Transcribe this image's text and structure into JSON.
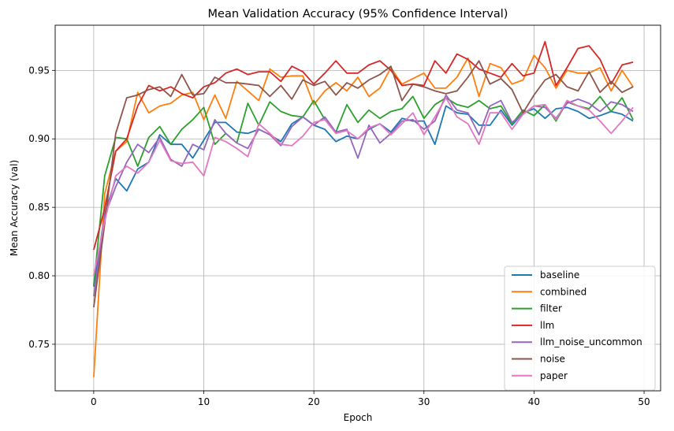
{
  "chart_data": {
    "type": "line",
    "title": "Mean Validation Accuracy (95% Confidence Interval)",
    "xlabel": "Epoch",
    "ylabel": "Mean Accuracy (val)",
    "xlim": [
      -3.5,
      51.5
    ],
    "ylim": [
      0.716,
      0.983
    ],
    "xticks": [
      0,
      10,
      20,
      30,
      40,
      50
    ],
    "yticks": [
      0.75,
      0.8,
      0.85,
      0.9,
      0.95
    ],
    "ytick_labels": [
      "0.75",
      "0.80",
      "0.85",
      "0.90",
      "0.95"
    ],
    "grid": true,
    "legend_position": "lower-right",
    "x": [
      0,
      1,
      2,
      3,
      4,
      5,
      6,
      7,
      8,
      9,
      10,
      11,
      12,
      13,
      14,
      15,
      16,
      17,
      18,
      19,
      20,
      21,
      22,
      23,
      24,
      25,
      26,
      27,
      28,
      29,
      30,
      31,
      32,
      33,
      34,
      35,
      36,
      37,
      38,
      39,
      40,
      41,
      42,
      43,
      44,
      45,
      46,
      47,
      48,
      49
    ],
    "series": [
      {
        "name": "baseline",
        "color": "#1f77b4",
        "values": [
          0.792,
          0.845,
          0.871,
          0.862,
          0.878,
          0.883,
          0.903,
          0.896,
          0.896,
          0.886,
          0.899,
          0.912,
          0.912,
          0.905,
          0.904,
          0.907,
          0.903,
          0.898,
          0.911,
          0.916,
          0.91,
          0.907,
          0.898,
          0.902,
          0.9,
          0.907,
          0.911,
          0.905,
          0.915,
          0.913,
          0.913,
          0.896,
          0.924,
          0.919,
          0.918,
          0.91,
          0.91,
          0.921,
          0.91,
          0.919,
          0.922,
          0.915,
          0.922,
          0.923,
          0.92,
          0.915,
          0.917,
          0.92,
          0.918,
          0.913
        ]
      },
      {
        "name": "combined",
        "color": "#ff7f0e",
        "values": [
          0.726,
          0.86,
          0.891,
          0.898,
          0.934,
          0.919,
          0.924,
          0.926,
          0.932,
          0.934,
          0.914,
          0.932,
          0.915,
          0.942,
          0.935,
          0.928,
          0.951,
          0.945,
          0.946,
          0.946,
          0.925,
          0.935,
          0.941,
          0.935,
          0.945,
          0.931,
          0.937,
          0.952,
          0.94,
          0.944,
          0.948,
          0.937,
          0.937,
          0.945,
          0.959,
          0.931,
          0.955,
          0.952,
          0.94,
          0.943,
          0.961,
          0.952,
          0.937,
          0.95,
          0.948,
          0.948,
          0.952,
          0.935,
          0.95,
          0.938
        ]
      },
      {
        "name": "filter",
        "color": "#2ca02c",
        "values": [
          0.793,
          0.873,
          0.901,
          0.9,
          0.88,
          0.901,
          0.909,
          0.896,
          0.907,
          0.914,
          0.923,
          0.896,
          0.904,
          0.897,
          0.926,
          0.91,
          0.927,
          0.92,
          0.917,
          0.916,
          0.928,
          0.914,
          0.905,
          0.925,
          0.912,
          0.921,
          0.915,
          0.92,
          0.922,
          0.931,
          0.915,
          0.925,
          0.93,
          0.925,
          0.923,
          0.928,
          0.922,
          0.924,
          0.911,
          0.921,
          0.917,
          0.925,
          0.913,
          0.927,
          0.924,
          0.922,
          0.931,
          0.92,
          0.93,
          0.914
        ]
      },
      {
        "name": "llm",
        "color": "#d62728",
        "values": [
          0.819,
          0.849,
          0.891,
          0.9,
          0.924,
          0.939,
          0.935,
          0.938,
          0.933,
          0.93,
          0.938,
          0.941,
          0.948,
          0.951,
          0.947,
          0.949,
          0.949,
          0.942,
          0.953,
          0.949,
          0.94,
          0.948,
          0.957,
          0.948,
          0.948,
          0.954,
          0.957,
          0.95,
          0.939,
          0.94,
          0.939,
          0.957,
          0.948,
          0.962,
          0.958,
          0.951,
          0.948,
          0.945,
          0.955,
          0.946,
          0.948,
          0.971,
          0.939,
          0.952,
          0.966,
          0.968,
          0.958,
          0.94,
          0.954,
          0.956
        ]
      },
      {
        "name": "llm_noise_uncommon",
        "color": "#9467bd",
        "values": [
          0.785,
          0.844,
          0.865,
          0.883,
          0.896,
          0.89,
          0.901,
          0.885,
          0.88,
          0.896,
          0.892,
          0.914,
          0.904,
          0.897,
          0.893,
          0.907,
          0.903,
          0.895,
          0.909,
          0.916,
          0.91,
          0.916,
          0.905,
          0.907,
          0.886,
          0.91,
          0.897,
          0.904,
          0.913,
          0.914,
          0.907,
          0.913,
          0.932,
          0.921,
          0.919,
          0.903,
          0.924,
          0.928,
          0.912,
          0.918,
          0.924,
          0.923,
          0.915,
          0.926,
          0.929,
          0.926,
          0.92,
          0.927,
          0.925,
          0.92
        ]
      },
      {
        "name": "noise",
        "color": "#8c564b",
        "values": [
          0.777,
          0.838,
          0.904,
          0.93,
          0.932,
          0.936,
          0.938,
          0.931,
          0.947,
          0.932,
          0.933,
          0.945,
          0.941,
          0.941,
          0.94,
          0.939,
          0.931,
          0.939,
          0.929,
          0.943,
          0.939,
          0.942,
          0.932,
          0.941,
          0.937,
          0.943,
          0.947,
          0.953,
          0.928,
          0.94,
          0.938,
          0.935,
          0.933,
          0.935,
          0.945,
          0.957,
          0.94,
          0.944,
          0.936,
          0.919,
          0.932,
          0.943,
          0.947,
          0.938,
          0.935,
          0.949,
          0.934,
          0.942,
          0.934,
          0.938
        ]
      },
      {
        "name": "paper",
        "color": "#e377c2",
        "values": [
          0.8,
          0.84,
          0.873,
          0.88,
          0.875,
          0.883,
          0.899,
          0.884,
          0.882,
          0.883,
          0.873,
          0.901,
          0.898,
          0.893,
          0.887,
          0.911,
          0.904,
          0.896,
          0.895,
          0.902,
          0.912,
          0.914,
          0.904,
          0.906,
          0.9,
          0.908,
          0.911,
          0.903,
          0.911,
          0.919,
          0.903,
          0.916,
          0.93,
          0.916,
          0.911,
          0.896,
          0.919,
          0.919,
          0.907,
          0.918,
          0.924,
          0.925,
          0.914,
          0.928,
          0.924,
          0.921,
          0.913,
          0.904,
          0.913,
          0.923
        ]
      }
    ]
  }
}
